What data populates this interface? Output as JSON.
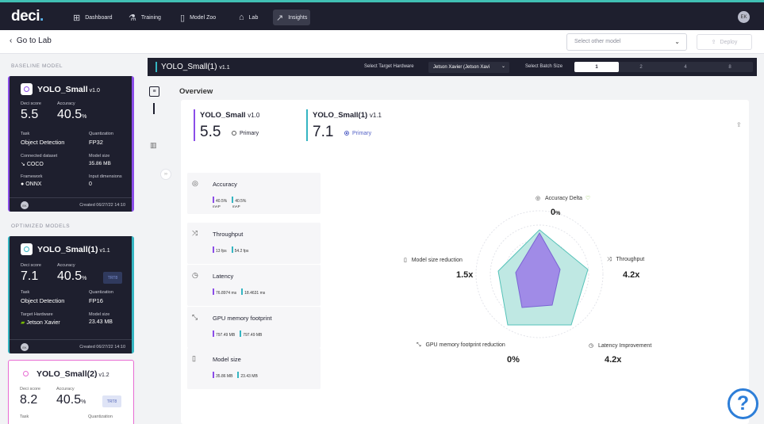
{
  "app": {
    "logo": "deci",
    "logo_dot": "."
  },
  "nav": {
    "items": [
      {
        "label": "Dashboard",
        "icon": "grid-icon"
      },
      {
        "label": "Training",
        "icon": "training-icon"
      },
      {
        "label": "Model Zoo",
        "icon": "model-zoo-icon"
      },
      {
        "label": "Lab",
        "icon": "lab-icon"
      },
      {
        "label": "Insights",
        "icon": "insights-icon"
      }
    ],
    "active": "Insights",
    "user_initials": "EK"
  },
  "subbar": {
    "back_label": "Go to Lab",
    "select_placeholder": "Select other model",
    "deploy_label": "Deploy"
  },
  "sidebar": {
    "baseline_label": "BASELINE MODEL",
    "optimized_label": "OPTIMIZED MODELS",
    "baseline": {
      "name": "YOLO_Small",
      "version": "v1.0",
      "deci_score_label": "Deci score",
      "deci_score": "5.5",
      "accuracy_label": "Accuracy",
      "accuracy": "40.5",
      "accuracy_unit": "%",
      "task_label": "Task",
      "task": "Object Detection",
      "quant_label": "Quantization",
      "quant": "FP32",
      "dataset_label": "Connected dataset",
      "dataset": "COCO",
      "model_size_label": "Model size",
      "model_size": "35.86 MB",
      "framework_label": "Framework",
      "framework": "ONNX",
      "input_dim_label": "Input dimensions",
      "input_dim": "0",
      "user": "EK",
      "created": "Created 06/27/22 14:10",
      "accent": "#8b4de8"
    },
    "optimized": [
      {
        "name": "YOLO_Small(1)",
        "version": "v1.1",
        "deci_score_label": "Deci score",
        "deci_score": "7.1",
        "accuracy_label": "Accuracy",
        "accuracy": "40.5",
        "accuracy_unit": "%",
        "badge": "TRT8",
        "task_label": "Task",
        "task": "Object Detection",
        "quant_label": "Quantization",
        "quant": "FP16",
        "hw_label": "Target Hardware",
        "hw": "Jetson Xavier",
        "model_size_label": "Model size",
        "model_size": "23.43 MB",
        "user": "EK",
        "created": "Created 06/27/22 14:10",
        "accent": "#35b5c2"
      },
      {
        "name": "YOLO_Small(2)",
        "version": "v1.2",
        "deci_score_label": "Deci score",
        "deci_score": "8.2",
        "accuracy_label": "Accuracy",
        "accuracy": "40.5",
        "accuracy_unit": "%",
        "badge": "TRT8",
        "task_label": "Task",
        "quant_label": "Quantization",
        "accent": "#e86cd3"
      }
    ]
  },
  "header": {
    "title": "YOLO_Small(1)",
    "version": "v1.1",
    "hw_label": "Select Target Hardware",
    "hw_value": "Jetson Xavier (Jetson Xavi",
    "batch_label": "Select Batch Size",
    "batch_options": [
      "1",
      "2",
      "4",
      "8"
    ],
    "batch_selected": "1"
  },
  "overview": {
    "title": "Overview",
    "models": [
      {
        "name": "YOLO_Small",
        "version": "v1.0",
        "score": "5.5",
        "primary": "Primary",
        "color": "#8b4de8"
      },
      {
        "name": "YOLO_Small(1)",
        "version": "v1.1",
        "score": "7.1",
        "primary": "Primary",
        "color": "#35b5c2"
      }
    ],
    "metrics": [
      {
        "title": "Accuracy",
        "icon": "target-icon",
        "a": "40.5%",
        "b": "40.5%",
        "unit": "mAP mAP"
      },
      {
        "title": "Throughput",
        "icon": "shuffle-icon",
        "a": "13 fps",
        "b": "54.2 fps"
      },
      {
        "title": "Latency",
        "icon": "clock-icon",
        "a": "76.8974 ms",
        "b": "18.4631 ms"
      },
      {
        "title": "GPU memory footprint",
        "icon": "compress-icon",
        "a": "797.49 MB",
        "b": "797.49 MB"
      },
      {
        "title": "Model size",
        "icon": "file-icon",
        "a": "35.86 MB",
        "b": "23.43 MB"
      }
    ],
    "radar": [
      {
        "label": "Accuracy Delta",
        "value": "0",
        "unit": "%"
      },
      {
        "label": "Throughput",
        "value": "4.2x"
      },
      {
        "label": "Latency Improvement",
        "value": "4.2x"
      },
      {
        "label": "GPU memory footprint reduction",
        "value": "0%"
      },
      {
        "label": "Model size reduction",
        "value": "1.5x"
      }
    ]
  },
  "help": "?"
}
